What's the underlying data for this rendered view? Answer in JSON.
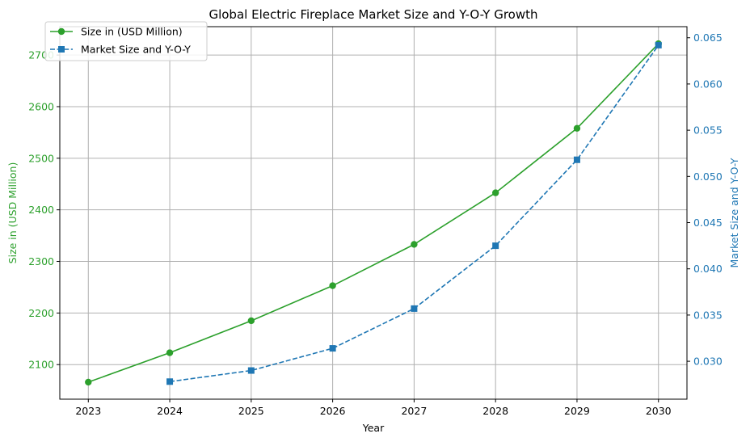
{
  "chart_data": {
    "type": "line",
    "title": "Global Electric Fireplace Market Size and Y-O-Y Growth",
    "xlabel": "Year",
    "ylabel_left": "Size in (USD Million)",
    "ylabel_right": "Market Size and Y-O-Y",
    "x": [
      2023,
      2024,
      2025,
      2026,
      2027,
      2028,
      2029,
      2030
    ],
    "x_ticks": [
      "2023",
      "2024",
      "2025",
      "2026",
      "2027",
      "2028",
      "2029",
      "2030"
    ],
    "left_axis": {
      "range": [
        2033,
        2755
      ],
      "ticks": [
        2100,
        2200,
        2300,
        2400,
        2500,
        2600,
        2700
      ],
      "tick_labels": [
        "2100",
        "2200",
        "2300",
        "2400",
        "2500",
        "2600",
        "2700"
      ],
      "color": "#2ca02c"
    },
    "right_axis": {
      "range": [
        0.0259,
        0.0662
      ],
      "ticks": [
        0.03,
        0.035,
        0.04,
        0.045,
        0.05,
        0.055,
        0.06,
        0.065
      ],
      "tick_labels": [
        "0.030",
        "0.035",
        "0.040",
        "0.045",
        "0.050",
        "0.055",
        "0.060",
        "0.065"
      ],
      "color": "#1f77b4"
    },
    "grid": true,
    "legend_position": "upper-left",
    "series": [
      {
        "name": "Size in (USD Million)",
        "axis": "left",
        "color": "#2ca02c",
        "line": "solid",
        "marker": "circle",
        "x": [
          2023,
          2024,
          2025,
          2026,
          2027,
          2028,
          2029,
          2030
        ],
        "values": [
          2066,
          2123,
          2185,
          2253,
          2333,
          2433,
          2558,
          2722
        ]
      },
      {
        "name": "Market Size and Y-O-Y",
        "axis": "right",
        "color": "#1f77b4",
        "line": "dashed",
        "marker": "square",
        "x": [
          2024,
          2025,
          2026,
          2027,
          2028,
          2029,
          2030
        ],
        "values": [
          0.0278,
          0.029,
          0.0314,
          0.0357,
          0.0425,
          0.0518,
          0.0642
        ]
      }
    ]
  }
}
